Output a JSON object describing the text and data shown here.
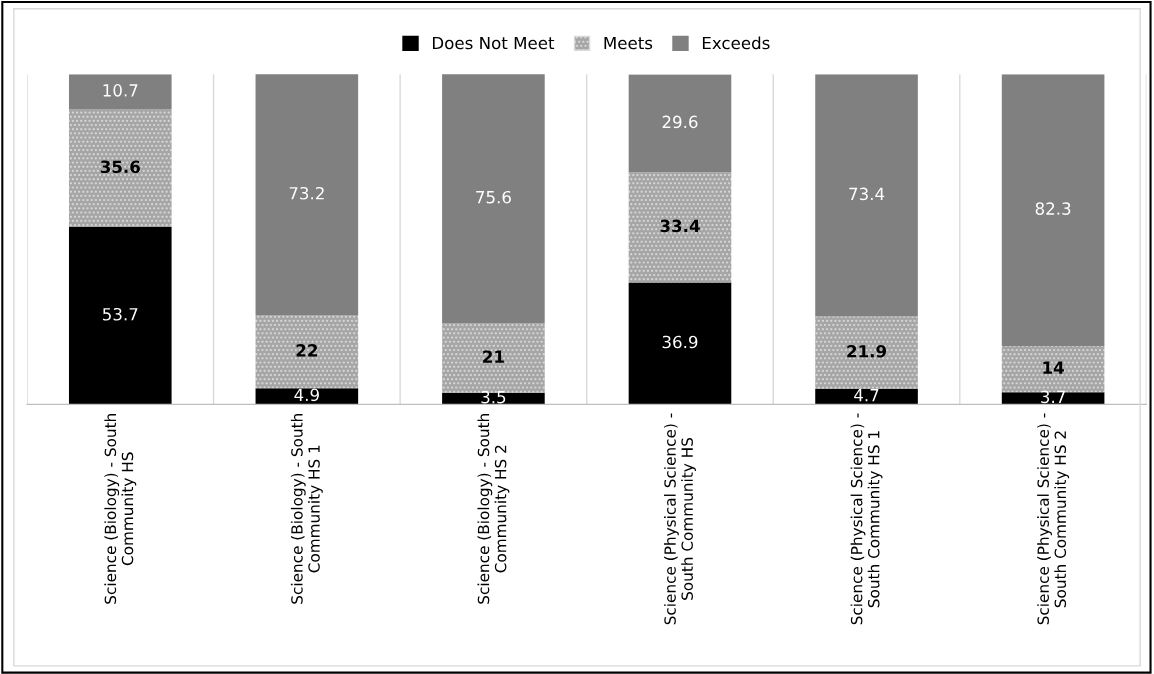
{
  "chart_data": {
    "type": "bar",
    "stacked": true,
    "categories": [
      "Science (Biology) - South Community HS",
      "Science (Biology) - South Community HS 1",
      "Science (Biology) - South Community HS 2",
      "Science (Physical Science) - South Community HS",
      "Science (Physical Science) - South Community HS 1",
      "Science (Physical Science) - South Community HS 2"
    ],
    "series": [
      {
        "name": "Does Not Meet",
        "color": "#000000",
        "values": [
          53.7,
          4.9,
          3.5,
          36.9,
          4.7,
          3.7
        ]
      },
      {
        "name": "Meets",
        "color": "#a6a6a6",
        "values": [
          35.6,
          22,
          21,
          33.4,
          21.9,
          14
        ]
      },
      {
        "name": "Exceeds",
        "color": "#808080",
        "values": [
          10.7,
          73.2,
          75.6,
          29.6,
          73.4,
          82.3
        ]
      }
    ],
    "ylim": [
      0,
      100
    ],
    "tick_labels": "x",
    "data_labels": true,
    "legend": "top",
    "grid": "x"
  }
}
